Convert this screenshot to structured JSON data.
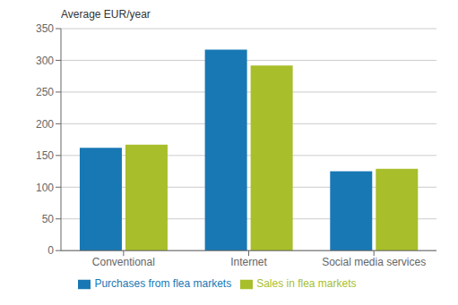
{
  "chart_data": {
    "type": "bar",
    "ylabel": "Average EUR/year",
    "categories": [
      "Conventional",
      "Internet",
      "Social media services"
    ],
    "series": [
      {
        "name": "Purchases from flea markets",
        "color": "#1878b4",
        "values": [
          162,
          317,
          125
        ]
      },
      {
        "name": "Sales in flea markets",
        "color": "#a8be2a",
        "values": [
          167,
          292,
          129
        ]
      }
    ],
    "ylim": [
      0,
      350
    ],
    "yticks": [
      0,
      50,
      100,
      150,
      200,
      250,
      300,
      350
    ],
    "grid": true,
    "legend": "bottom"
  }
}
